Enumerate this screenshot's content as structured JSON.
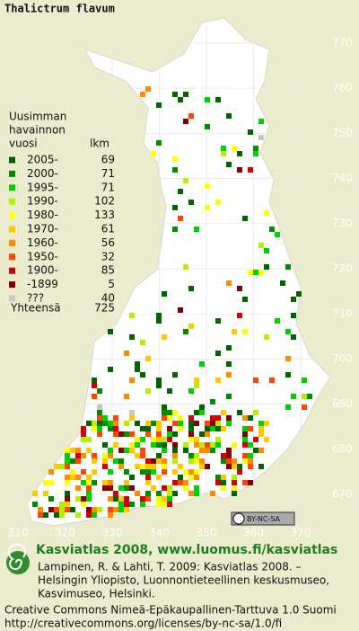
{
  "title": "Thalictrum flavum",
  "legend": {
    "heading": [
      "Uusimman",
      "havainnon",
      "vuosi"
    ],
    "count_heading": "lkm",
    "items": [
      {
        "label": "2005-",
        "count": 69,
        "color": "#006400"
      },
      {
        "label": "2000-",
        "count": 71,
        "color": "#008c00"
      },
      {
        "label": "1995-",
        "count": 71,
        "color": "#00d000"
      },
      {
        "label": "1990-",
        "count": 102,
        "color": "#b4f000"
      },
      {
        "label": "1980-",
        "count": 133,
        "color": "#ffff00"
      },
      {
        "label": "1970-",
        "count": 61,
        "color": "#ffc800"
      },
      {
        "label": "1960-",
        "count": 56,
        "color": "#ff8c00"
      },
      {
        "label": "1950-",
        "count": 32,
        "color": "#ff4600"
      },
      {
        "label": "1900-",
        "count": 85,
        "color": "#d20000"
      },
      {
        "label": "-1899",
        "count": 5,
        "color": "#820000"
      },
      {
        "label": "???",
        "count": 40,
        "color": "#c8c8c8"
      }
    ],
    "total_label": "Yhteensä",
    "total": 725
  },
  "grid": {
    "x_labels": [
      310,
      320,
      330,
      340,
      350,
      360,
      370
    ],
    "y_labels": [
      670,
      680,
      690,
      700,
      710,
      720,
      730,
      740,
      750,
      760,
      770
    ]
  },
  "badge": "BY-NC-SA",
  "footer": {
    "brand": "Kasviatlas 2008, www.luomus.fi/kasviatlas",
    "citation": [
      "Lampinen, R. & Lahti, T. 2009: Kasviatlas 2008. –",
      "Helsingin Yliopisto, Luonnontieteellinen keskusmuseo,",
      "Kasvimuseo, Helsinki."
    ],
    "license": [
      "Creative Commons Nimeä-Epäkaupallinen-Tarttuva 1.0 Suomi",
      "http://creativecommons.org/licenses/by-nc-sa/1.0/fi"
    ]
  }
}
